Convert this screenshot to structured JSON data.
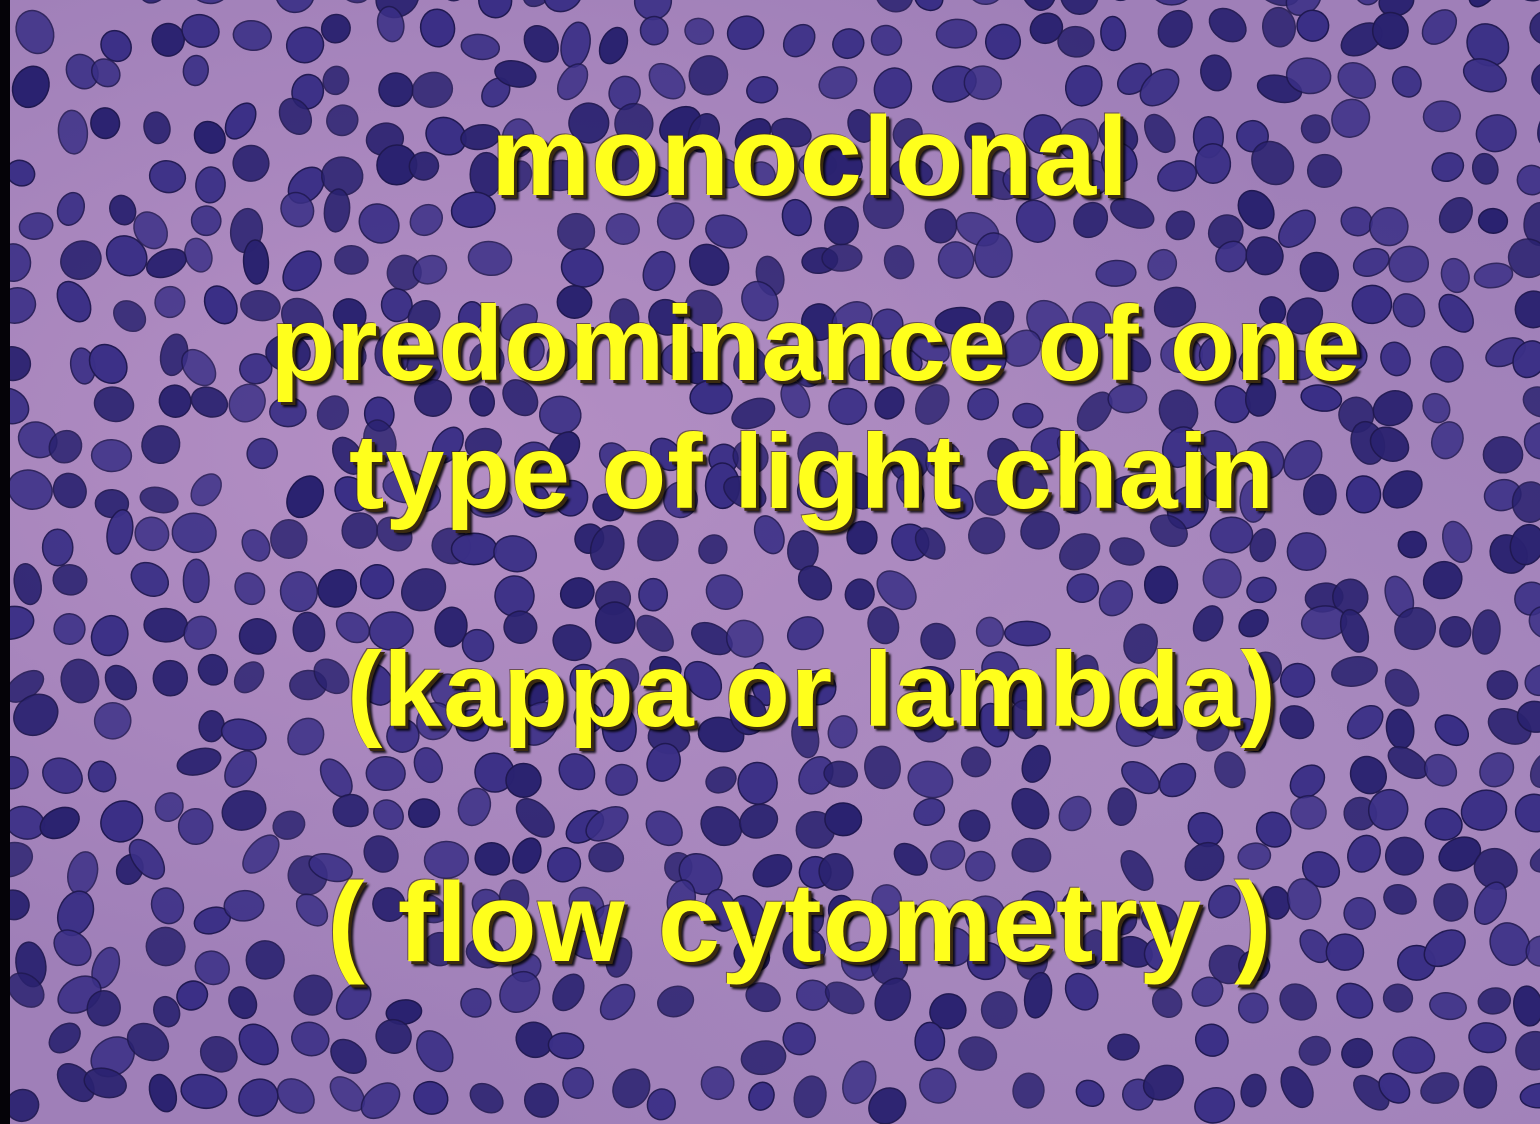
{
  "slide": {
    "lines": [
      "monoclonal",
      "predominance of one",
      "type of light chain",
      "(kappa or lambda)",
      "( flow cytometry )"
    ]
  },
  "background": {
    "description_icon": "histology-micrograph-background",
    "colors": {
      "stroma": "#a07fb8",
      "nucleus": "#3a2f86",
      "nucleus_dark": "#2a2270",
      "text": "#ffff1c"
    }
  }
}
